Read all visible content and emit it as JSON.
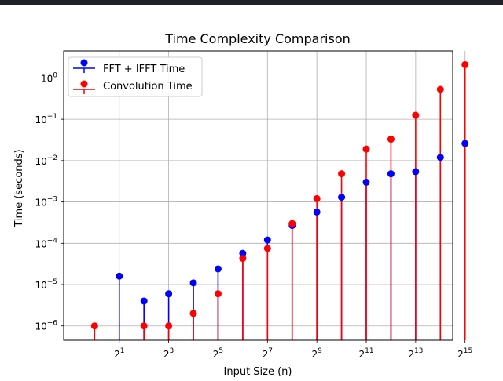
{
  "chart_data": {
    "type": "stem",
    "title": "Time Complexity Comparison",
    "xlabel": "Input Size (n)",
    "ylabel": "Time (seconds)",
    "x_scale": "log2",
    "y_scale": "log10",
    "xlim": [
      0.42,
      23170
    ],
    "ylim": [
      4.5e-07,
      4.5
    ],
    "x_ticks": [
      {
        "value": 2,
        "base": "2",
        "exp": "1"
      },
      {
        "value": 8,
        "base": "2",
        "exp": "3"
      },
      {
        "value": 32,
        "base": "2",
        "exp": "5"
      },
      {
        "value": 128,
        "base": "2",
        "exp": "7"
      },
      {
        "value": 512,
        "base": "2",
        "exp": "9"
      },
      {
        "value": 2048,
        "base": "2",
        "exp": "11"
      },
      {
        "value": 8192,
        "base": "2",
        "exp": "13"
      },
      {
        "value": 32768,
        "base": "2",
        "exp": "15"
      }
    ],
    "y_ticks": [
      {
        "value": 1e-06,
        "base": "10",
        "exp": "−6"
      },
      {
        "value": 1e-05,
        "base": "10",
        "exp": "−5"
      },
      {
        "value": 0.0001,
        "base": "10",
        "exp": "−4"
      },
      {
        "value": 0.001,
        "base": "10",
        "exp": "−3"
      },
      {
        "value": 0.01,
        "base": "10",
        "exp": "−2"
      },
      {
        "value": 0.1,
        "base": "10",
        "exp": "−1"
      },
      {
        "value": 1,
        "base": "10",
        "exp": "0"
      }
    ],
    "grid": true,
    "legend_position": "top-left",
    "x": [
      1,
      2,
      4,
      8,
      16,
      32,
      64,
      128,
      256,
      512,
      1024,
      2048,
      4096,
      8192,
      16384,
      32768
    ],
    "series": [
      {
        "name": "FFT + IFFT Time",
        "color": "#0000ff",
        "values": [
          0,
          1.6e-05,
          4e-06,
          6e-06,
          1.1e-05,
          2.4e-05,
          5.7e-05,
          0.00012,
          0.00027,
          0.00057,
          0.0013,
          0.003,
          0.0048,
          0.0054,
          0.012,
          0.026
        ]
      },
      {
        "name": "Convolution Time",
        "color": "#ff0000",
        "values": [
          1e-06,
          0,
          1e-06,
          1e-06,
          2e-06,
          6e-06,
          4.3e-05,
          7.5e-05,
          0.0003,
          0.0012,
          0.0048,
          0.019,
          0.033,
          0.125,
          0.53,
          2.1
        ]
      }
    ]
  }
}
